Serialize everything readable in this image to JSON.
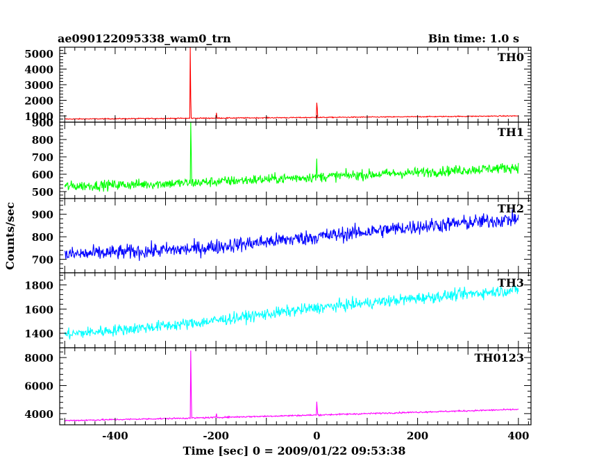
{
  "chart_data": {
    "type": "line",
    "title": "ae090122095338_wam0_trn",
    "subtitle": "Bin time: 1.0 s",
    "xlabel": "Time [sec] 0 = 2009/01/22 09:53:38",
    "ylabel": "Counts/sec",
    "xlim": [
      -510,
      425
    ],
    "xticks": [
      -400,
      -200,
      0,
      200,
      400
    ],
    "grid": false,
    "panels": [
      {
        "name": "TH0",
        "color": "#ff0000",
        "ylim": [
          600,
          5400
        ],
        "yticks": [
          1000,
          2000,
          3000,
          4000,
          5000
        ],
        "baseline": [
          [
            -500,
            800
          ],
          [
            -250,
            850
          ],
          [
            0,
            900
          ],
          [
            200,
            950
          ],
          [
            400,
            1000
          ]
        ],
        "noise": 30,
        "spikes": [
          [
            -251,
            5400
          ],
          [
            -250,
            2200
          ],
          [
            -199,
            1200
          ],
          [
            0,
            1850
          ],
          [
            1,
            1500
          ]
        ]
      },
      {
        "name": "TH1",
        "color": "#00ff00",
        "ylim": [
          460,
          900
        ],
        "yticks": [
          500,
          600,
          700,
          800,
          900
        ],
        "baseline": [
          [
            -500,
            530
          ],
          [
            -250,
            550
          ],
          [
            0,
            585
          ],
          [
            200,
            610
          ],
          [
            400,
            640
          ]
        ],
        "noise": 28,
        "spikes": [
          [
            -250,
            900
          ],
          [
            -249,
            720
          ],
          [
            0,
            690
          ]
        ]
      },
      {
        "name": "TH2",
        "color": "#0000ff",
        "ylim": [
          640,
          970
        ],
        "yticks": [
          700,
          800,
          900
        ],
        "baseline": [
          [
            -500,
            720
          ],
          [
            -250,
            745
          ],
          [
            0,
            800
          ],
          [
            200,
            845
          ],
          [
            400,
            880
          ]
        ],
        "noise": 32,
        "spikes": []
      },
      {
        "name": "TH3",
        "color": "#00ffff",
        "ylim": [
          1280,
          1900
        ],
        "yticks": [
          1400,
          1600,
          1800
        ],
        "baseline": [
          [
            -500,
            1390
          ],
          [
            -250,
            1480
          ],
          [
            0,
            1610
          ],
          [
            200,
            1690
          ],
          [
            400,
            1760
          ]
        ],
        "noise": 45,
        "spikes": []
      },
      {
        "name": "TH0123",
        "color": "#ff00ff",
        "ylim": [
          3200,
          8700
        ],
        "yticks": [
          4000,
          6000,
          8000
        ],
        "baseline": [
          [
            -500,
            3500
          ],
          [
            -250,
            3680
          ],
          [
            0,
            3900
          ],
          [
            200,
            4100
          ],
          [
            400,
            4300
          ]
        ],
        "noise": 50,
        "spikes": [
          [
            -250,
            8500
          ],
          [
            -249,
            5500
          ],
          [
            -199,
            4000
          ],
          [
            0,
            4850
          ],
          [
            1,
            4300
          ]
        ]
      }
    ]
  }
}
